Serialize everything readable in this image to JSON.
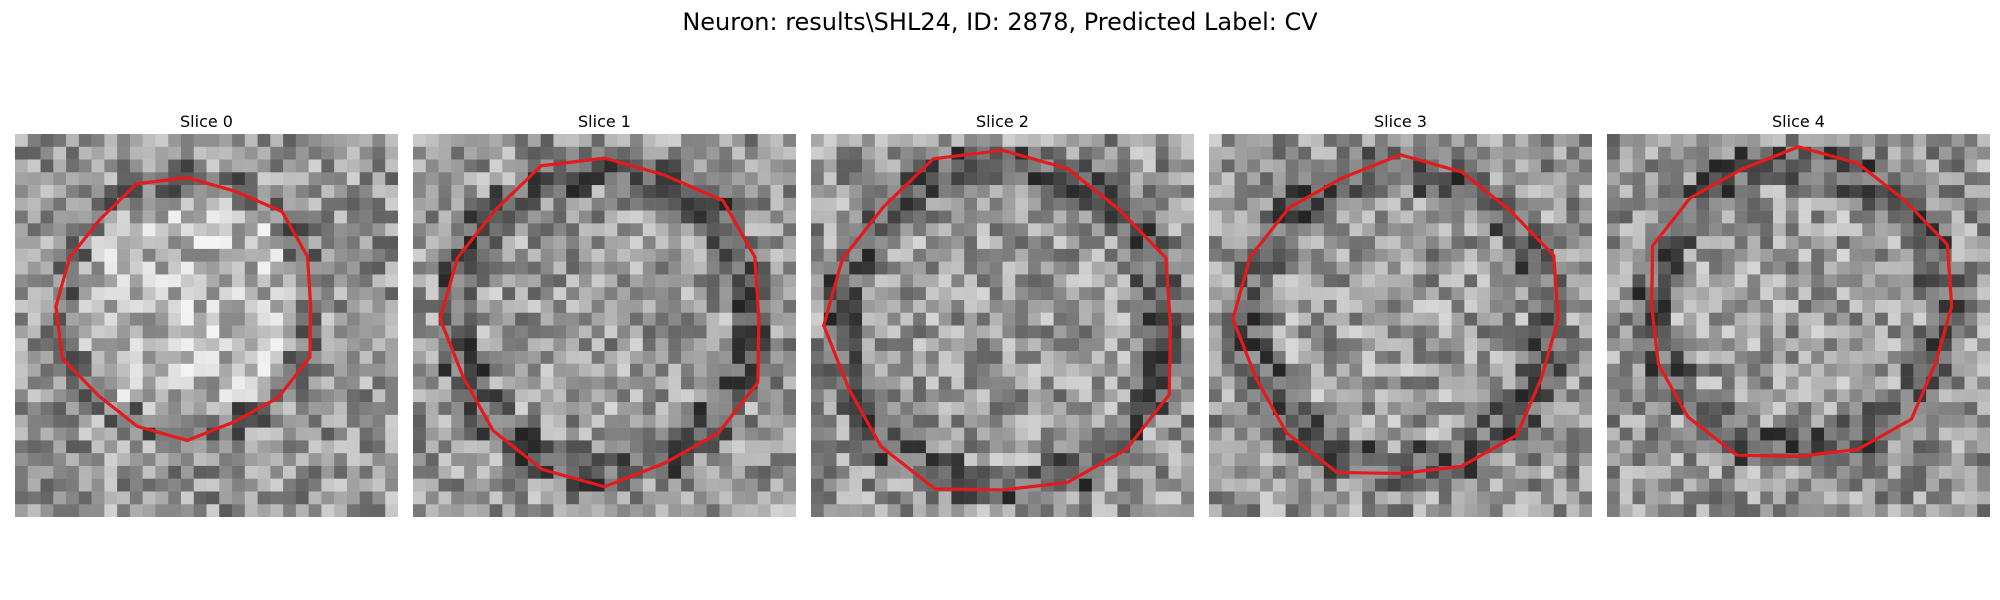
{
  "title": "Neuron: results\\SHL24, ID: 2878, Predicted Label: CV",
  "slices": [
    {
      "label": "Slice 0",
      "seed": 11
    },
    {
      "label": "Slice 1",
      "seed": 23
    },
    {
      "label": "Slice 2",
      "seed": 37
    },
    {
      "label": "Slice 3",
      "seed": 41
    },
    {
      "label": "Slice 4",
      "seed": 59
    }
  ],
  "colors": {
    "contour": "#e41a1c"
  }
}
